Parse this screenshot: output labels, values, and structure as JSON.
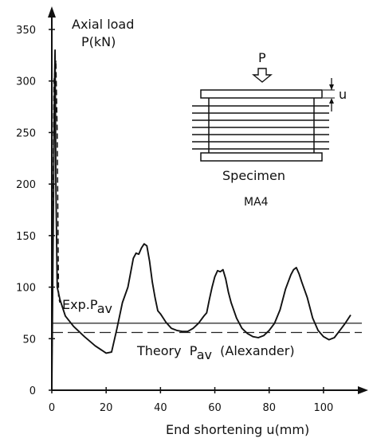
{
  "chart_data": {
    "type": "line",
    "title": "",
    "ylabel_line1": "Axial load",
    "ylabel_line2": "P(kN)",
    "xlabel": "End shortening  u(mm)",
    "xlim": [
      0,
      110
    ],
    "ylim": [
      0,
      350
    ],
    "x_ticks": [
      0,
      20,
      40,
      60,
      80,
      100
    ],
    "y_ticks": [
      0,
      50,
      100,
      150,
      200,
      250,
      300,
      350
    ],
    "grid": false,
    "series": [
      {
        "style": "solid",
        "x": [
          0,
          0.5,
          1.0,
          1.2,
          1.5,
          2,
          3,
          5,
          8,
          12,
          16,
          20,
          22,
          24,
          26,
          28,
          30,
          31,
          32,
          33,
          34,
          35,
          36,
          37,
          38,
          39,
          40,
          41,
          42,
          44,
          46,
          48,
          50,
          52,
          54,
          56,
          57,
          58,
          59,
          60,
          61,
          62,
          63,
          64,
          65,
          66,
          68,
          70,
          72,
          74,
          76,
          78,
          80,
          82,
          84,
          85,
          86,
          87,
          88,
          89,
          90,
          91,
          92,
          94,
          96,
          98,
          100,
          102,
          104,
          106,
          108,
          110
        ],
        "y": [
          0,
          150,
          300,
          330,
          200,
          100,
          88,
          72,
          62,
          52,
          43,
          36,
          37,
          60,
          85,
          100,
          128,
          133,
          132,
          138,
          142,
          140,
          125,
          105,
          90,
          77,
          74,
          70,
          66,
          60,
          58,
          57,
          57,
          60,
          65,
          72,
          75,
          88,
          100,
          110,
          116,
          115,
          117,
          108,
          95,
          85,
          70,
          60,
          55,
          52,
          51,
          53,
          58,
          65,
          78,
          88,
          98,
          105,
          112,
          117,
          119,
          113,
          105,
          90,
          70,
          58,
          52,
          49,
          51,
          58,
          65,
          73
        ]
      },
      {
        "style": "dashed",
        "x": [
          0,
          0.8,
          1.5,
          2.0,
          2.5,
          3.0
        ],
        "y": [
          0,
          300,
          320,
          250,
          90,
          85
        ]
      }
    ],
    "reference_lines": [
      {
        "label": "Exp.P",
        "subscript": "av",
        "style": "solid",
        "y": 65
      },
      {
        "label": "Theory  P",
        "subscript": "av",
        "suffix": "  (Alexander)",
        "style": "dashed",
        "y": 56
      }
    ],
    "annotations": {
      "inset_force_label": "P",
      "inset_displacement_label": "u",
      "specimen_label": "Specimen",
      "specimen_id": "MA4"
    }
  }
}
